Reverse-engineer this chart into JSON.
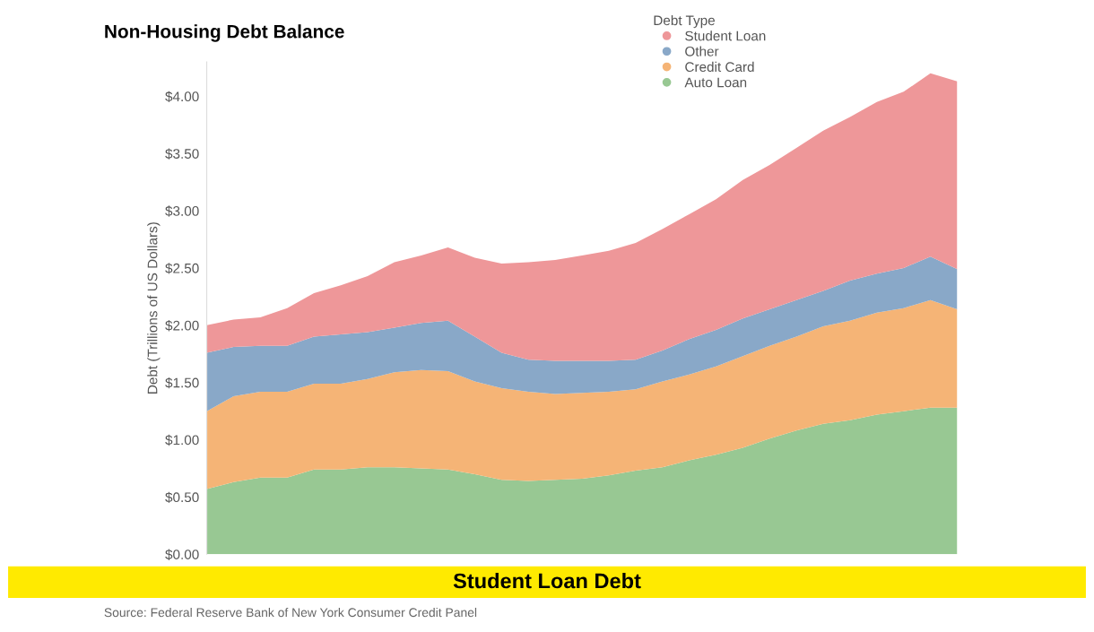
{
  "chart_data": {
    "type": "area",
    "stacked": true,
    "title": "Non-Housing Debt Balance",
    "ylabel": "Debt (Trillions of US Dollars)",
    "legend_title": "Debt Type",
    "legend": "top",
    "grid": false,
    "tick_labels": "y",
    "categories": [
      null,
      null,
      null,
      null,
      null,
      null,
      null,
      null,
      null,
      null,
      null,
      null,
      null,
      null,
      null,
      null,
      null,
      null,
      null,
      null,
      null,
      null,
      null,
      null,
      null,
      null,
      null,
      null,
      null
    ],
    "ylim": [
      0,
      4.3
    ],
    "yticks": [
      {
        "value": 0,
        "label": "$0.00"
      },
      {
        "value": 0.5,
        "label": "$0.50"
      },
      {
        "value": 1,
        "label": "$1.00"
      },
      {
        "value": 1.5,
        "label": "$1.50"
      },
      {
        "value": 2,
        "label": "$2.00"
      },
      {
        "value": 2.5,
        "label": "$2.50"
      },
      {
        "value": 3,
        "label": "$3.00"
      },
      {
        "value": 3.5,
        "label": "$3.50"
      },
      {
        "value": 4,
        "label": "$4.00"
      }
    ],
    "series": [
      {
        "name": "Auto Loan",
        "color": "#98c893",
        "values": [
          0.57,
          0.63,
          0.67,
          0.67,
          0.74,
          0.74,
          0.76,
          0.76,
          0.75,
          0.74,
          0.7,
          0.65,
          0.64,
          0.65,
          0.66,
          0.69,
          0.73,
          0.76,
          0.82,
          0.87,
          0.93,
          1.01,
          1.08,
          1.14,
          1.17,
          1.22,
          1.25,
          1.28,
          1.28
        ]
      },
      {
        "name": "Credit Card",
        "color": "#f5b476",
        "values": [
          0.68,
          0.75,
          0.75,
          0.75,
          0.75,
          0.75,
          0.77,
          0.83,
          0.86,
          0.86,
          0.81,
          0.8,
          0.78,
          0.75,
          0.75,
          0.73,
          0.71,
          0.75,
          0.75,
          0.77,
          0.8,
          0.81,
          0.82,
          0.85,
          0.87,
          0.89,
          0.9,
          0.94,
          0.86
        ]
      },
      {
        "name": "Other",
        "color": "#89a8c8",
        "values": [
          0.51,
          0.43,
          0.4,
          0.4,
          0.41,
          0.43,
          0.41,
          0.39,
          0.41,
          0.44,
          0.39,
          0.31,
          0.28,
          0.29,
          0.28,
          0.27,
          0.26,
          0.27,
          0.31,
          0.32,
          0.33,
          0.32,
          0.32,
          0.31,
          0.35,
          0.34,
          0.35,
          0.38,
          0.35
        ]
      },
      {
        "name": "Student Loan",
        "color": "#ee9799",
        "values": [
          0.24,
          0.24,
          0.25,
          0.33,
          0.38,
          0.43,
          0.49,
          0.57,
          0.59,
          0.64,
          0.69,
          0.78,
          0.85,
          0.88,
          0.92,
          0.96,
          1.02,
          1.06,
          1.09,
          1.14,
          1.21,
          1.26,
          1.33,
          1.4,
          1.43,
          1.5,
          1.54,
          1.6,
          1.64
        ]
      }
    ],
    "annotations": [
      "Student Loan Debt",
      "Source: Federal Reserve Bank of New York Consumer Credit Panel"
    ]
  }
}
